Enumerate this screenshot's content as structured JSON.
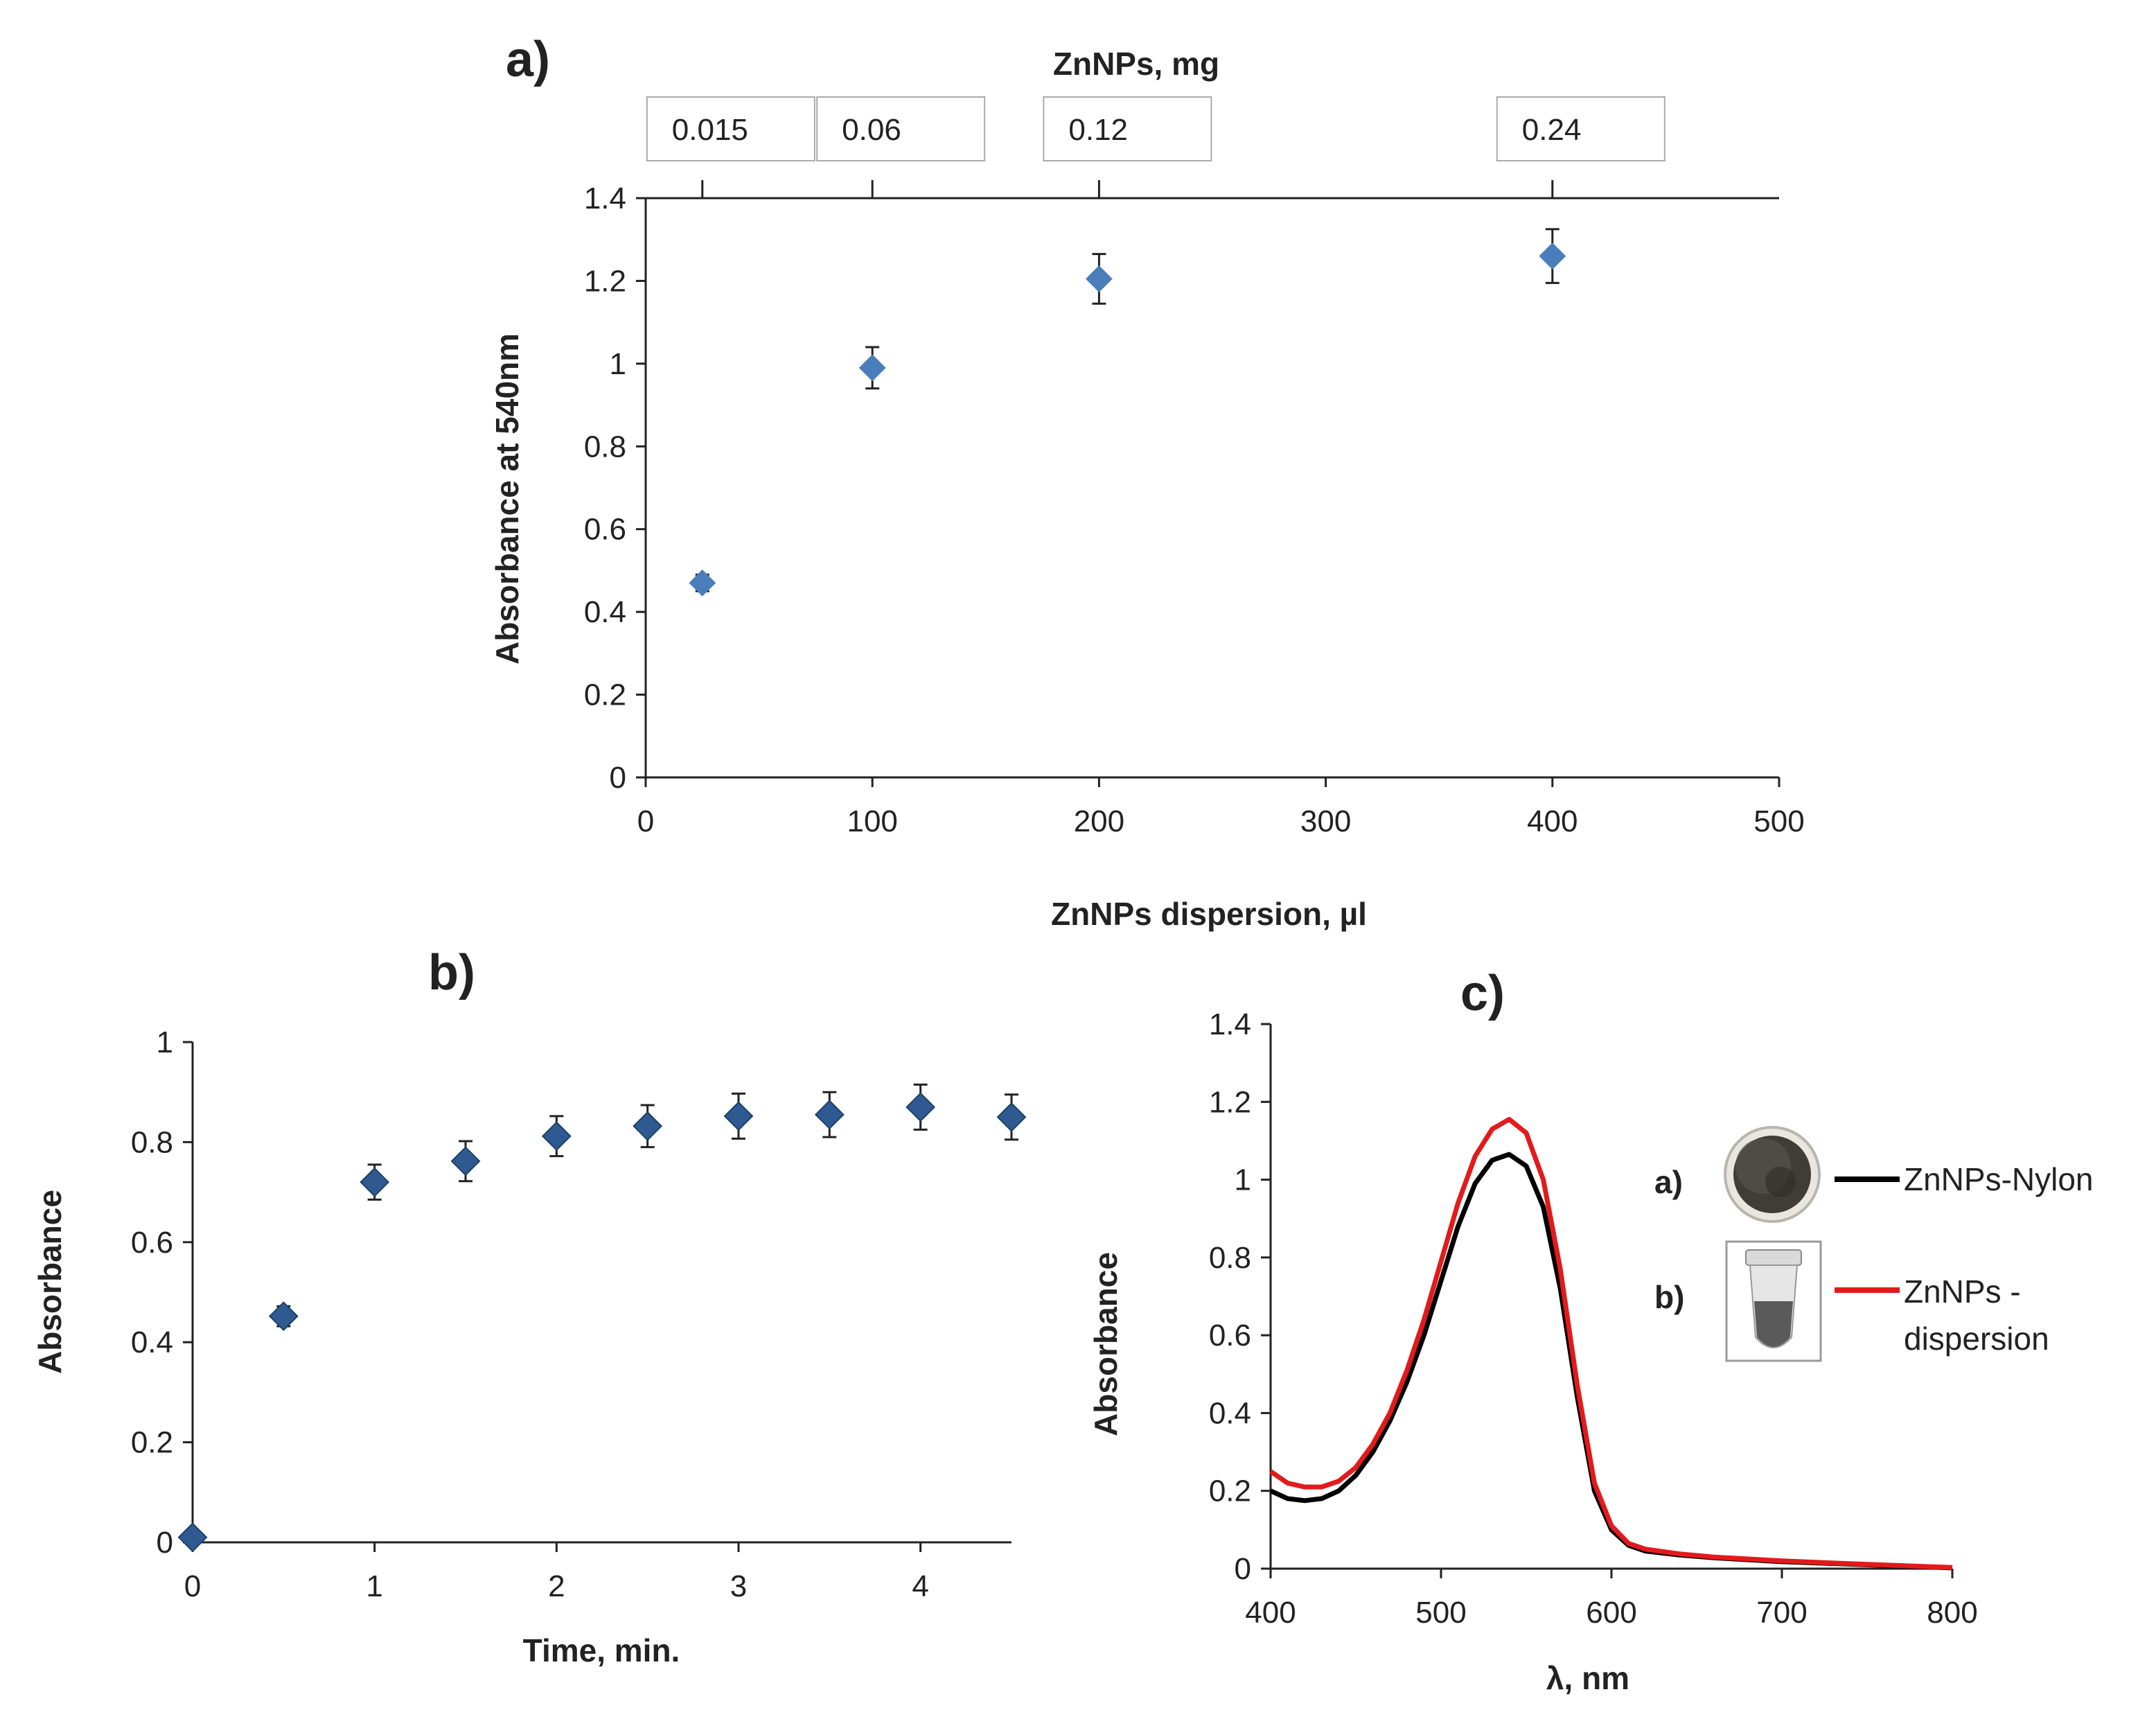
{
  "colors": {
    "marker": "#4a7ebb",
    "marker_dark": "#2e5a91",
    "errorbar": "#222222",
    "nylon_line": "#000000",
    "dispersion_line": "#e31a1c",
    "axis": "#222222"
  },
  "chart_data": [
    {
      "panel": "a)",
      "type": "scatter",
      "xlabel": "ZnNPs dispersion, µl",
      "ylabel": "Absorbance at 540nm",
      "xlim": [
        0,
        500
      ],
      "ylim": [
        0,
        1.4
      ],
      "xticks": [
        0,
        100,
        200,
        300,
        400,
        500
      ],
      "yticks": [
        0,
        0.2,
        0.4,
        0.6,
        0.8,
        1,
        1.2,
        1.4
      ],
      "secondary_x": {
        "label": "ZnNPs, mg",
        "positions": [
          25,
          100,
          200,
          400
        ],
        "labels": [
          "0.015",
          "0.06",
          "0.12",
          "0.24"
        ]
      },
      "series": [
        {
          "name": "Absorbance",
          "x": [
            25,
            100,
            200,
            400
          ],
          "y": [
            0.47,
            0.99,
            1.205,
            1.26
          ],
          "err": [
            0.02,
            0.05,
            0.06,
            0.065
          ]
        }
      ]
    },
    {
      "panel": "b)",
      "type": "scatter",
      "xlabel": "Time, min.",
      "ylabel": "Absorbance",
      "xlim": [
        0,
        4.5
      ],
      "ylim": [
        0,
        1
      ],
      "xticks": [
        0,
        1,
        2,
        3,
        4
      ],
      "yticks": [
        0,
        0.2,
        0.4,
        0.6,
        0.8,
        1
      ],
      "series": [
        {
          "name": "Absorbance",
          "x": [
            0,
            0.5,
            1,
            1.5,
            2,
            2.5,
            3,
            3.5,
            4,
            4.5
          ],
          "y": [
            0.01,
            0.452,
            0.72,
            0.762,
            0.812,
            0.832,
            0.852,
            0.855,
            0.87,
            0.85
          ],
          "err": [
            0.005,
            0.02,
            0.035,
            0.04,
            0.04,
            0.042,
            0.045,
            0.045,
            0.045,
            0.045
          ]
        }
      ]
    },
    {
      "panel": "c)",
      "type": "line",
      "xlabel": "λ, nm",
      "ylabel": "Absorbance",
      "xlim": [
        400,
        800
      ],
      "ylim": [
        0,
        1.4
      ],
      "xticks": [
        400,
        500,
        600,
        700,
        800
      ],
      "yticks": [
        0,
        0.2,
        0.4,
        0.6,
        0.8,
        1,
        1.2,
        1.4
      ],
      "series": [
        {
          "name": "ZnNPs-Nylon",
          "legend_prefix": "a)",
          "x": [
            400,
            410,
            420,
            430,
            440,
            450,
            460,
            470,
            480,
            490,
            500,
            510,
            520,
            530,
            540,
            550,
            560,
            570,
            580,
            590,
            600,
            610,
            620,
            640,
            660,
            700,
            750,
            800
          ],
          "y": [
            0.2,
            0.18,
            0.175,
            0.18,
            0.2,
            0.24,
            0.3,
            0.38,
            0.48,
            0.6,
            0.74,
            0.88,
            0.99,
            1.05,
            1.065,
            1.035,
            0.93,
            0.72,
            0.44,
            0.2,
            0.1,
            0.06,
            0.045,
            0.035,
            0.028,
            0.018,
            0.01,
            0.002
          ]
        },
        {
          "name": "ZnNPs - dispersion",
          "legend_prefix": "b)",
          "x": [
            400,
            410,
            420,
            430,
            440,
            450,
            460,
            470,
            480,
            490,
            500,
            510,
            520,
            530,
            540,
            550,
            560,
            570,
            580,
            590,
            600,
            610,
            620,
            640,
            660,
            700,
            750,
            800
          ],
          "y": [
            0.25,
            0.22,
            0.21,
            0.21,
            0.225,
            0.26,
            0.32,
            0.4,
            0.51,
            0.64,
            0.79,
            0.94,
            1.06,
            1.13,
            1.155,
            1.12,
            1.0,
            0.77,
            0.47,
            0.22,
            0.11,
            0.065,
            0.05,
            0.038,
            0.03,
            0.02,
            0.011,
            0.003
          ]
        }
      ]
    }
  ]
}
